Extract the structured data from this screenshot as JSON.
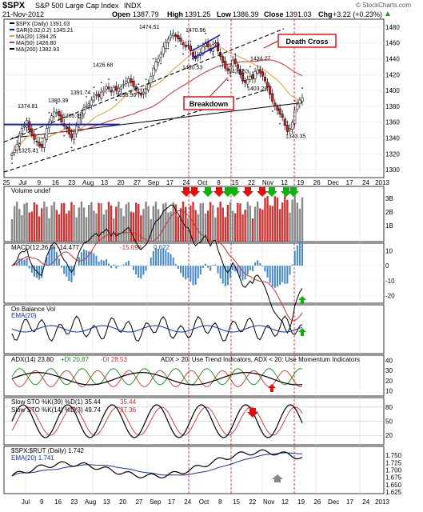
{
  "header": {
    "symbol": "$SPX",
    "name": "S&P 500 Large Cap Index",
    "exchange": "INDX",
    "date": "21-Nov-2012",
    "open_label": "Open",
    "open": "1387.79",
    "high_label": "High",
    "high": "1391.25",
    "low_label": "Low",
    "low": "1386.39",
    "close_label": "Close",
    "close": "1391.03",
    "chg_label": "Chg",
    "chg": "+3.22 (+0.23%)",
    "source": "© StockCharts.com",
    "chg_arrow": "up-triangle-icon"
  },
  "colors": {
    "up_candle": "#ffffff",
    "down_candle": "#d32020",
    "ma20": "#e89a3a",
    "ma50": "#d03030",
    "ma200": "#000000",
    "ema": "#1030b0",
    "volume_up": "#888888",
    "volume_down": "#cc3333",
    "annotation_red": "#e01010",
    "arrow_green": "#10b010",
    "sar": "#0a2090",
    "histogram": "#4488cc"
  },
  "x_axis": {
    "labels_top": [
      "25",
      "Jul",
      "9",
      "16",
      "23",
      "Aug",
      "13",
      "20",
      "27",
      "Sep",
      "17",
      "24",
      "Oct",
      "8",
      "15",
      "22",
      "Nov",
      "12",
      "19",
      "26",
      "Dec",
      "17",
      "24",
      "2013"
    ],
    "labels_bottom": [
      "Jul",
      "9",
      "16",
      "23",
      "Aug",
      "13",
      "20",
      "27",
      "Sep",
      "17",
      "24",
      "Oct",
      "8",
      "15",
      "22",
      "Nov",
      "12",
      "19",
      "26",
      "Dec",
      "17",
      "24",
      "2013"
    ]
  },
  "chart_data": [
    {
      "type": "candlestick",
      "panel": "price",
      "legend": [
        "$SPX (Daily) 1391.03",
        "SAR(0.02,0.2) 1345.21",
        "MA(20) 1394.26",
        "MA(50) 1426.80",
        "MA(200) 1382.93"
      ],
      "ylim": [
        1290,
        1490
      ],
      "y_ticks": [
        1300,
        1320,
        1340,
        1360,
        1380,
        1400,
        1420,
        1440,
        1460,
        1480
      ],
      "closes": [
        1320,
        1325,
        1332,
        1345,
        1352,
        1355,
        1362,
        1350,
        1344,
        1338,
        1335,
        1330,
        1328,
        1340,
        1352,
        1360,
        1368,
        1373,
        1372,
        1368,
        1360,
        1355,
        1352,
        1345,
        1340,
        1345,
        1355,
        1365,
        1372,
        1378,
        1380,
        1383,
        1388,
        1392,
        1395,
        1392,
        1398,
        1400,
        1405,
        1402,
        1398,
        1404,
        1400,
        1403,
        1405,
        1408,
        1412,
        1415,
        1410,
        1405,
        1400,
        1396,
        1394,
        1398,
        1402,
        1408,
        1418,
        1428,
        1436,
        1440,
        1446,
        1455,
        1460,
        1465,
        1470,
        1472,
        1468,
        1465,
        1462,
        1458,
        1455,
        1456,
        1450,
        1443,
        1440,
        1445,
        1448,
        1455,
        1460,
        1455,
        1450,
        1458,
        1460,
        1450,
        1443,
        1435,
        1428,
        1425,
        1430,
        1438,
        1434,
        1428,
        1420,
        1412,
        1410,
        1414,
        1418,
        1415,
        1424,
        1426,
        1422,
        1418,
        1412,
        1404,
        1395,
        1386,
        1380,
        1375,
        1370,
        1366,
        1356,
        1348,
        1352,
        1360,
        1375,
        1382,
        1388,
        1391
      ],
      "price_labels": [
        {
          "text": "1374.81",
          "value": 1374.81
        },
        {
          "text": "1325.41",
          "value": 1325.41
        },
        {
          "text": "1365.65",
          "value": 1365.65
        },
        {
          "text": "1380.39",
          "value": 1380.39
        },
        {
          "text": "1391.74",
          "value": 1391.74
        },
        {
          "text": "1426.68",
          "value": 1426.68
        },
        {
          "text": "1395.96",
          "value": 1395.96
        },
        {
          "text": "1474.51",
          "value": 1474.51
        },
        {
          "text": "1470.96",
          "value": 1470.96
        },
        {
          "text": "1430.53",
          "value": 1430.53
        },
        {
          "text": "1425.53",
          "value": 1425.53
        },
        {
          "text": "1434.27",
          "value": 1434.27
        },
        {
          "text": "1403.28",
          "value": 1403.28
        },
        {
          "text": "1343.35",
          "value": 1343.35
        }
      ],
      "annotations": [
        "Death Cross",
        "Breakdown"
      ]
    },
    {
      "type": "bar",
      "panel": "volume",
      "legend": [
        "Volume undef"
      ],
      "y_ticks_labels": [
        "3B",
        "2B",
        "1B"
      ]
    },
    {
      "type": "line",
      "panel": "macd",
      "legend": [
        "MACD(12,26,9) -14.477",
        "-15.098",
        "0.622"
      ],
      "y_ticks": [
        10,
        0,
        -10,
        -20
      ],
      "ylim": [
        -25,
        15
      ]
    },
    {
      "type": "line",
      "panel": "obv",
      "legend": [
        "On Balance Vol",
        "EMA(20)"
      ]
    },
    {
      "type": "line",
      "panel": "adx",
      "legend": [
        "ADX(14) 23.80",
        "+DI 20.87",
        "-DI 28.53",
        "ADX > 20: Use Trend Indicators, ADX < 20: Use Momentum Indicators"
      ],
      "y_ticks": [
        40,
        30,
        20,
        10
      ],
      "ylim": [
        5,
        45
      ]
    },
    {
      "type": "line",
      "panel": "slow_sto_long",
      "legend": [
        "Slow STO %K(39) %D(1) 35.44",
        "35.44"
      ],
      "y_ticks": [
        80,
        50,
        20
      ],
      "ylim": [
        0,
        100
      ]
    },
    {
      "type": "line",
      "panel": "slow_sto_short",
      "legend": [
        "Slow STO %K(14) %D(3) 49.74",
        "37.36"
      ],
      "y_ticks": [
        80,
        50,
        20
      ],
      "ylim": [
        0,
        100
      ]
    },
    {
      "type": "line",
      "panel": "spx_rut",
      "legend": [
        "$SPX:$RUT (Daily) 1.742",
        "EMA(20) 1.741"
      ],
      "y_ticks": [
        "1.750",
        "1.725",
        "1.700",
        "1.675",
        "1.650",
        "1.625"
      ],
      "ylim": [
        1.62,
        1.78
      ]
    }
  ]
}
